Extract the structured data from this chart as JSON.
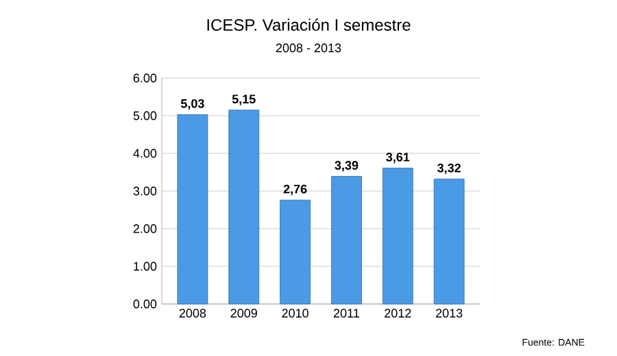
{
  "chart_data": {
    "type": "bar",
    "title": "ICESP. Variación I semestre",
    "subtitle": "2008 - 2013",
    "categories": [
      "2008",
      "2009",
      "2010",
      "2011",
      "2012",
      "2013"
    ],
    "values": [
      5.03,
      5.15,
      2.76,
      3.39,
      3.61,
      3.32
    ],
    "value_labels": [
      "5,03",
      "5,15",
      "2,76",
      "3,39",
      "3,61",
      "3,32"
    ],
    "color": "#4a9ae6",
    "ylim": [
      0,
      6
    ],
    "yticks": [
      {
        "value": 0,
        "label": "0.00"
      },
      {
        "value": 1,
        "label": "1.00"
      },
      {
        "value": 2,
        "label": "2.00"
      },
      {
        "value": 3,
        "label": "3.00"
      },
      {
        "value": 4,
        "label": "4.00"
      },
      {
        "value": 5,
        "label": "5.00"
      },
      {
        "value": 6,
        "label": "6.00"
      }
    ],
    "grid": "y",
    "annotations": [
      "Fuente: DANE"
    ]
  }
}
